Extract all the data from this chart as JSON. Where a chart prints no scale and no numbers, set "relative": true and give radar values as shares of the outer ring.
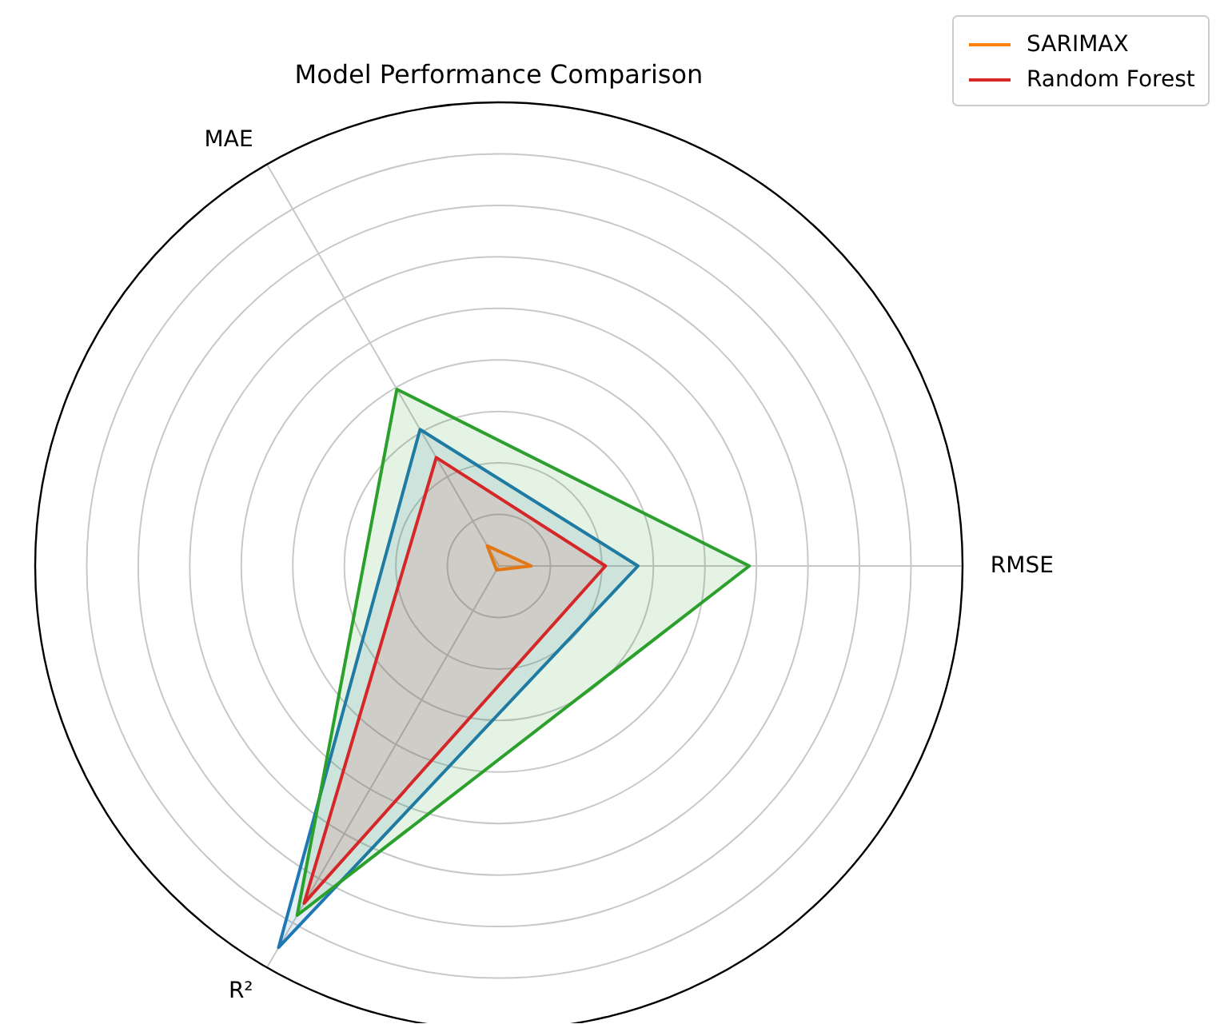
{
  "chart_data": {
    "type": "radar",
    "title": "Model Performance Comparison",
    "categories": [
      "RMSE",
      "R²",
      "MAE"
    ],
    "relative": true,
    "grid": true,
    "legend": "top right",
    "series": [
      {
        "color": "#1f77b4",
        "values": [
          0.3,
          0.95,
          0.34
        ]
      },
      {
        "name": "SARIMAX",
        "color": "#ff7f0e",
        "values": [
          0.07,
          0.01,
          0.05
        ]
      },
      {
        "color": "#2ca02c",
        "values": [
          0.54,
          0.87,
          0.44
        ]
      },
      {
        "name": "Random Forest",
        "color": "#d62728",
        "values": [
          0.23,
          0.84,
          0.27
        ]
      }
    ]
  }
}
